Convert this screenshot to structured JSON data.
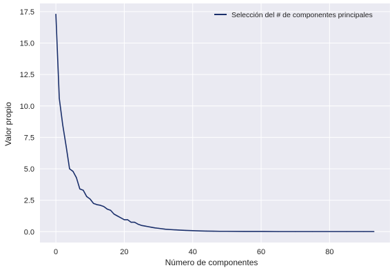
{
  "chart_data": {
    "type": "line",
    "title": "",
    "xlabel": "Número de componentes",
    "ylabel": "Valor propio",
    "xlim": [
      -4.65,
      97.65
    ],
    "ylim": [
      -0.86,
      18.15
    ],
    "xticks": [
      0,
      20,
      40,
      60,
      80
    ],
    "xtick_labels": [
      "0",
      "20",
      "40",
      "60",
      "80"
    ],
    "yticks": [
      0.0,
      2.5,
      5.0,
      7.5,
      10.0,
      12.5,
      15.0,
      17.5
    ],
    "ytick_labels": [
      "0.0",
      "2.5",
      "5.0",
      "7.5",
      "10.0",
      "12.5",
      "15.0",
      "17.5"
    ],
    "grid": true,
    "legend_position": "top-right",
    "series": [
      {
        "name": "Selección del # de componentes principales",
        "color": "#1a2f6b",
        "x": [
          0,
          1,
          2,
          3,
          4,
          5,
          6,
          7,
          8,
          9,
          10,
          11,
          12,
          13,
          14,
          15,
          16,
          17,
          18,
          19,
          20,
          21,
          22,
          23,
          24,
          25,
          26,
          27,
          28,
          29,
          30,
          32,
          34,
          36,
          38,
          40,
          42,
          44,
          46,
          48,
          50,
          55,
          60,
          65,
          70,
          75,
          80,
          85,
          90,
          93
        ],
        "y": [
          17.3,
          10.6,
          8.5,
          6.8,
          5.0,
          4.8,
          4.3,
          3.4,
          3.3,
          2.8,
          2.6,
          2.25,
          2.15,
          2.1,
          2.0,
          1.8,
          1.7,
          1.4,
          1.25,
          1.1,
          0.95,
          0.95,
          0.75,
          0.75,
          0.6,
          0.5,
          0.45,
          0.4,
          0.35,
          0.3,
          0.27,
          0.2,
          0.16,
          0.13,
          0.1,
          0.08,
          0.06,
          0.05,
          0.04,
          0.03,
          0.03,
          0.02,
          0.02,
          0.01,
          0.01,
          0.01,
          0.01,
          0.01,
          0.01,
          0.01
        ]
      }
    ],
    "colors": {
      "plot_background": "#eaeaf2",
      "grid": "#ffffff",
      "line": "#1a2f6b"
    }
  }
}
